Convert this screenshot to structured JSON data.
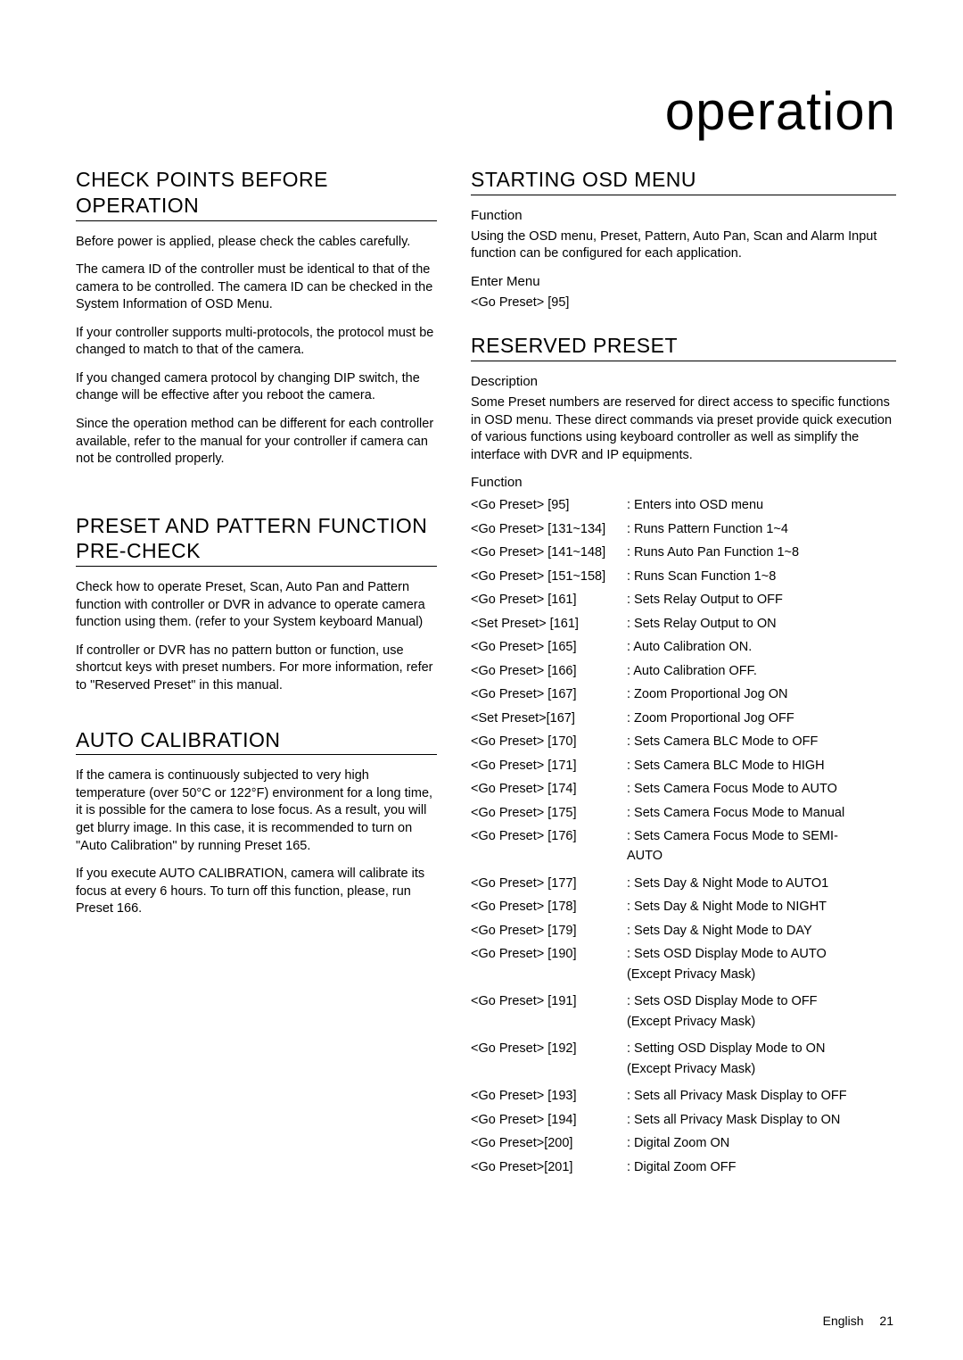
{
  "page_title": "operation",
  "footer": {
    "lang": "English",
    "page_num": "21"
  },
  "left": {
    "s1": {
      "heading": "CHECK POINTS BEFORE OPERATION",
      "p1": "Before power is applied, please check the cables carefully.",
      "p2": "The camera ID of the controller must be identical to that of the camera to be controlled. The camera ID can be checked in the System Information of OSD Menu.",
      "p3": "If your controller supports multi-protocols, the protocol must be changed to match to that of the camera.",
      "p4": "If you changed camera protocol by changing DIP switch, the change will be effective after you reboot the camera.",
      "p5": "Since the operation method can be different for each controller available, refer to the manual for your controller if camera can not be controlled properly."
    },
    "s2": {
      "heading": "PRESET AND PATTERN FUNCTION PRE-CHECK",
      "p1": "Check how to operate Preset, Scan, Auto Pan and Pattern function with controller or DVR in advance to operate camera function using them. (refer to your System keyboard Manual)",
      "p2": "If controller or DVR has no pattern button or function, use shortcut keys with preset numbers. For more information, refer to \"Reserved Preset\" in this manual."
    },
    "s3": {
      "heading": "AUTO CALIBRATION",
      "p1": "If the camera is continuously subjected to very high temperature (over 50°C or 122°F) environment for a long time, it is possible for the camera to lose focus. As a result, you will get blurry image. In this case, it is recommended to turn on \"Auto Calibration\" by running Preset 165.",
      "p2": "If you execute AUTO CALIBRATION, camera will calibrate its focus at every 6 hours. To turn off this function, please, run Preset 166."
    }
  },
  "right": {
    "s1": {
      "heading": "STARTING OSD MENU",
      "lbl_func": "Function",
      "p1": "Using the OSD menu, Preset, Pattern, Auto Pan, Scan and Alarm Input function can be configured for each application.",
      "lbl_enter": "Enter Menu",
      "p2": "<Go Preset> [95]"
    },
    "s2": {
      "heading": "RESERVED PRESET",
      "lbl_desc": "Description",
      "p1": "Some Preset numbers are reserved for direct access to specific functions in OSD menu. These direct commands via preset provide quick execution of various functions using keyboard controller as well as simplify the interface with DVR and IP equipments.",
      "lbl_func": "Function",
      "presets": [
        {
          "cmd": "<Go Preset> [95]",
          "desc": ": Enters into OSD menu"
        },
        {
          "cmd": "<Go Preset> [131~134]",
          "desc": ": Runs Pattern Function 1~4"
        },
        {
          "cmd": "<Go Preset> [141~148]",
          "desc": ": Runs Auto Pan Function 1~8"
        },
        {
          "cmd": "<Go Preset> [151~158]",
          "desc": ": Runs Scan Function 1~8"
        },
        {
          "cmd": "<Go Preset> [161]",
          "desc": ": Sets Relay Output to OFF"
        },
        {
          "cmd": "<Set Preset> [161]",
          "desc": ": Sets Relay Output to ON"
        },
        {
          "cmd": "<Go Preset> [165]",
          "desc": ": Auto Calibration ON."
        },
        {
          "cmd": "<Go Preset> [166]",
          "desc": ": Auto Calibration OFF."
        },
        {
          "cmd": "<Go Preset> [167]",
          "desc": ": Zoom Proportional Jog ON"
        },
        {
          "cmd": "<Set Preset>[167]",
          "desc": ": Zoom Proportional Jog OFF"
        },
        {
          "cmd": "<Go Preset> [170]",
          "desc": ": Sets Camera BLC Mode to OFF"
        },
        {
          "cmd": "<Go Preset> [171]",
          "desc": ": Sets Camera BLC Mode to HIGH"
        },
        {
          "cmd": "<Go Preset> [174]",
          "desc": ": Sets Camera Focus Mode to AUTO"
        },
        {
          "cmd": "<Go Preset> [175]",
          "desc": ": Sets Camera Focus Mode to Manual"
        },
        {
          "cmd": "<Go Preset> [176]",
          "desc": ": Sets Camera Focus Mode to SEMI-",
          "cont": "AUTO"
        },
        {
          "cmd": "<Go Preset> [177]",
          "desc": ": Sets Day & Night Mode to AUTO1"
        },
        {
          "cmd": "<Go Preset> [178]",
          "desc": ": Sets Day & Night Mode to NIGHT"
        },
        {
          "cmd": "<Go Preset> [179]",
          "desc": ": Sets Day & Night Mode to DAY"
        },
        {
          "cmd": "<Go Preset> [190]",
          "desc": ": Sets OSD Display Mode to AUTO",
          "cont": "(Except Privacy Mask)"
        },
        {
          "cmd": "<Go Preset> [191]",
          "desc": ": Sets OSD Display Mode to OFF",
          "cont": "(Except Privacy Mask)"
        },
        {
          "cmd": "<Go Preset> [192]",
          "desc": ": Setting OSD Display Mode to ON",
          "cont": "(Except Privacy Mask)"
        },
        {
          "cmd": "<Go Preset> [193]",
          "desc": ": Sets all Privacy Mask Display to OFF"
        },
        {
          "cmd": "<Go Preset> [194]",
          "desc": ": Sets all Privacy Mask Display to ON"
        },
        {
          "cmd": "<Go Preset>[200]",
          "desc": ": Digital Zoom ON"
        },
        {
          "cmd": "<Go Preset>[201]",
          "desc": ": Digital Zoom OFF"
        }
      ]
    }
  }
}
